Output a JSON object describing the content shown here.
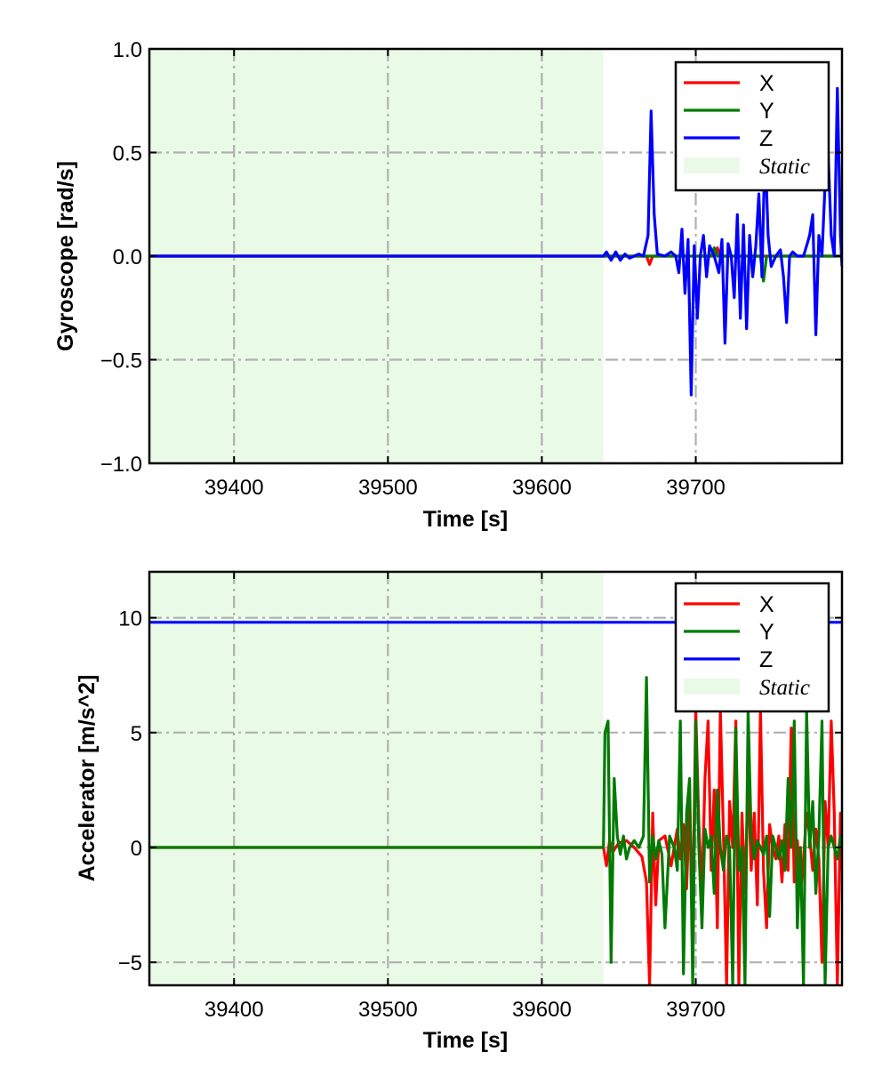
{
  "chart_data": [
    {
      "type": "line",
      "xlabel": "Time [s]",
      "ylabel": "Gyroscope [rad/s]",
      "xlim": [
        39345,
        39795
      ],
      "ylim": [
        -1.0,
        1.0
      ],
      "xticks": [
        39400,
        39500,
        39600,
        39700
      ],
      "xtick_labels": [
        "39400",
        "39500",
        "39600",
        "39700"
      ],
      "yticks": [
        -1.0,
        -0.5,
        0.0,
        0.5,
        1.0
      ],
      "ytick_labels": [
        "−1.0",
        "−0.5",
        "0.0",
        "0.5",
        "1.0"
      ],
      "grid": true,
      "legend_position": "top-right",
      "static_region": {
        "label": "Static",
        "x_start": 39345,
        "x_end": 39640,
        "color": "#e9fbe6"
      },
      "series": [
        {
          "name": "X",
          "color": "#ff0000",
          "x": [
            39345,
            39640,
            39668,
            39670,
            39672,
            39700,
            39712,
            39714,
            39716,
            39760,
            39795
          ],
          "values": [
            0.0,
            0.0,
            0.0,
            -0.04,
            0.0,
            0.0,
            0.0,
            0.04,
            0.0,
            0.0,
            0.0
          ]
        },
        {
          "name": "Y",
          "color": "#007a00",
          "x": [
            39345,
            39640,
            39710,
            39712,
            39714,
            39742,
            39744,
            39746,
            39795
          ],
          "values": [
            0.0,
            0.0,
            0.0,
            0.04,
            0.0,
            0.0,
            -0.12,
            0.0,
            0.0
          ]
        },
        {
          "name": "Z",
          "color": "#0000ff",
          "x": [
            39345,
            39640,
            39642,
            39645,
            39648,
            39651,
            39654,
            39657,
            39660,
            39663,
            39666,
            39669,
            39671,
            39673,
            39675,
            39680,
            39684,
            39687,
            39689,
            39691,
            39693,
            39695,
            39697,
            39699,
            39701,
            39703,
            39705,
            39707,
            39709,
            39712,
            39715,
            39717,
            39719,
            39721,
            39723,
            39725,
            39727,
            39729,
            39731,
            39733,
            39735,
            39737,
            39739,
            39741,
            39743,
            39745,
            39747,
            39749,
            39752,
            39755,
            39757,
            39759,
            39761,
            39763,
            39766,
            39770,
            39772,
            39774,
            39776,
            39778,
            39780,
            39782,
            39784,
            39786,
            39788,
            39790,
            39792,
            39794,
            39795
          ],
          "values": [
            0.0,
            0.0,
            0.02,
            -0.02,
            0.02,
            -0.02,
            0.01,
            -0.01,
            0.0,
            0.01,
            0.0,
            0.1,
            0.7,
            0.2,
            0.01,
            0.0,
            0.02,
            0.0,
            -0.08,
            0.13,
            -0.18,
            0.08,
            -0.67,
            0.05,
            -0.3,
            0.0,
            0.1,
            -0.1,
            0.05,
            0.0,
            -0.08,
            0.08,
            -0.42,
            0.06,
            0.0,
            -0.2,
            0.2,
            -0.3,
            0.15,
            -0.35,
            0.1,
            -0.1,
            0.05,
            0.3,
            -0.1,
            0.55,
            0.1,
            -0.05,
            0.0,
            0.03,
            -0.1,
            -0.32,
            0.0,
            0.02,
            0.0,
            0.0,
            0.05,
            0.1,
            0.2,
            -0.38,
            0.1,
            0.0,
            0.35,
            0.5,
            0.1,
            0.0,
            0.81,
            0.1,
            -0.05
          ]
        }
      ]
    },
    {
      "type": "line",
      "xlabel": "Time [s]",
      "ylabel": "Accelerator [m/s^2]",
      "xlim": [
        39345,
        39795
      ],
      "ylim": [
        -6.0,
        12.0
      ],
      "xticks": [
        39400,
        39500,
        39600,
        39700
      ],
      "xtick_labels": [
        "39400",
        "39500",
        "39600",
        "39700"
      ],
      "yticks": [
        -5,
        0,
        5,
        10
      ],
      "ytick_labels": [
        "−5",
        "0",
        "5",
        "10"
      ],
      "grid": true,
      "legend_position": "top-right",
      "static_region": {
        "label": "Static",
        "x_start": 39345,
        "x_end": 39640,
        "color": "#e9fbe6"
      },
      "series": [
        {
          "name": "X",
          "color": "#ff0000",
          "x": [
            39345,
            39640,
            39642,
            39644,
            39646,
            39650,
            39655,
            39660,
            39665,
            39668,
            39670,
            39672,
            39674,
            39676,
            39680,
            39684,
            39688,
            39690,
            39692,
            39694,
            39696,
            39698,
            39700,
            39702,
            39704,
            39706,
            39708,
            39710,
            39712,
            39714,
            39716,
            39718,
            39720,
            39722,
            39724,
            39726,
            39728,
            39730,
            39732,
            39734,
            39736,
            39738,
            39740,
            39742,
            39744,
            39746,
            39748,
            39750,
            39752,
            39754,
            39756,
            39758,
            39760,
            39762,
            39764,
            39766,
            39768,
            39770,
            39772,
            39774,
            39776,
            39778,
            39780,
            39782,
            39784,
            39786,
            39788,
            39790,
            39792,
            39794,
            39795
          ],
          "values": [
            0.0,
            0.0,
            -0.8,
            0.3,
            -0.2,
            0.2,
            0.3,
            0.0,
            -0.4,
            -1.5,
            -6.0,
            1.5,
            -2.5,
            0.3,
            0.5,
            -0.8,
            0.8,
            -0.5,
            1.0,
            -1.8,
            2.0,
            -3.0,
            6.0,
            1.0,
            -2.0,
            3.0,
            5.5,
            -1.0,
            2.5,
            -3.5,
            6.0,
            0.5,
            -6.0,
            2.0,
            0.0,
            5.5,
            -6.0,
            1.5,
            -2.0,
            3.0,
            -1.0,
            1.5,
            -2.5,
            6.0,
            -1.0,
            -3.5,
            1.0,
            0.0,
            -0.5,
            0.5,
            -1.5,
            1.0,
            -1.0,
            5.2,
            -1.5,
            0.3,
            -2.0,
            -0.5,
            1.5,
            0.5,
            -1.0,
            0.8,
            -0.5,
            -5.0,
            2.0,
            0.0,
            5.5,
            1.5,
            -6.0,
            1.5,
            -1.0
          ]
        },
        {
          "name": "Y",
          "color": "#007a00",
          "x": [
            39345,
            39640,
            39641,
            39643,
            39645,
            39647,
            39649,
            39651,
            39653,
            39655,
            39657,
            39660,
            39663,
            39666,
            39668,
            39670,
            39672,
            39674,
            39676,
            39678,
            39680,
            39683,
            39686,
            39688,
            39690,
            39692,
            39694,
            39696,
            39698,
            39700,
            39702,
            39704,
            39706,
            39708,
            39710,
            39712,
            39714,
            39716,
            39718,
            39720,
            39722,
            39724,
            39726,
            39728,
            39730,
            39732,
            39734,
            39736,
            39738,
            39740,
            39742,
            39744,
            39746,
            39748,
            39750,
            39752,
            39754,
            39756,
            39758,
            39760,
            39762,
            39764,
            39766,
            39768,
            39770,
            39772,
            39774,
            39776,
            39778,
            39780,
            39782,
            39784,
            39786,
            39788,
            39790,
            39792,
            39794,
            39795
          ],
          "values": [
            0.0,
            0.0,
            5.0,
            5.5,
            -5.0,
            3.0,
            0.5,
            -0.3,
            0.5,
            -0.5,
            0.0,
            0.3,
            0.0,
            0.5,
            7.4,
            -1.5,
            0.5,
            -0.5,
            0.3,
            -0.3,
            -3.5,
            0.5,
            0.0,
            -1.0,
            5.5,
            -5.5,
            1.5,
            3.0,
            -6.0,
            5.5,
            0.0,
            -3.5,
            0.8,
            0.0,
            0.5,
            -2.0,
            2.5,
            0.0,
            -1.0,
            0.5,
            0.0,
            -6.0,
            5.2,
            -1.0,
            0.0,
            -6.0,
            6.0,
            0.5,
            -0.5,
            0.3,
            0.0,
            -0.3,
            0.5,
            -3.0,
            0.5,
            0.0,
            -0.5,
            0.3,
            -1.0,
            3.0,
            0.0,
            5.5,
            -3.5,
            0.0,
            -6.0,
            6.0,
            0.0,
            2.0,
            -2.0,
            0.5,
            5.5,
            -6.0,
            0.0,
            0.5,
            0.0,
            -0.5,
            0.5,
            0.0
          ]
        },
        {
          "name": "Z",
          "color": "#0000ff",
          "x": [
            39345,
            39400,
            39450,
            39500,
            39550,
            39600,
            39640,
            39660,
            39680,
            39700,
            39720,
            39740,
            39760,
            39780,
            39795
          ],
          "values": [
            9.8,
            9.8,
            9.8,
            9.8,
            9.8,
            9.8,
            9.8,
            9.8,
            9.8,
            9.8,
            9.8,
            9.8,
            9.8,
            9.8,
            9.8
          ]
        }
      ]
    }
  ]
}
